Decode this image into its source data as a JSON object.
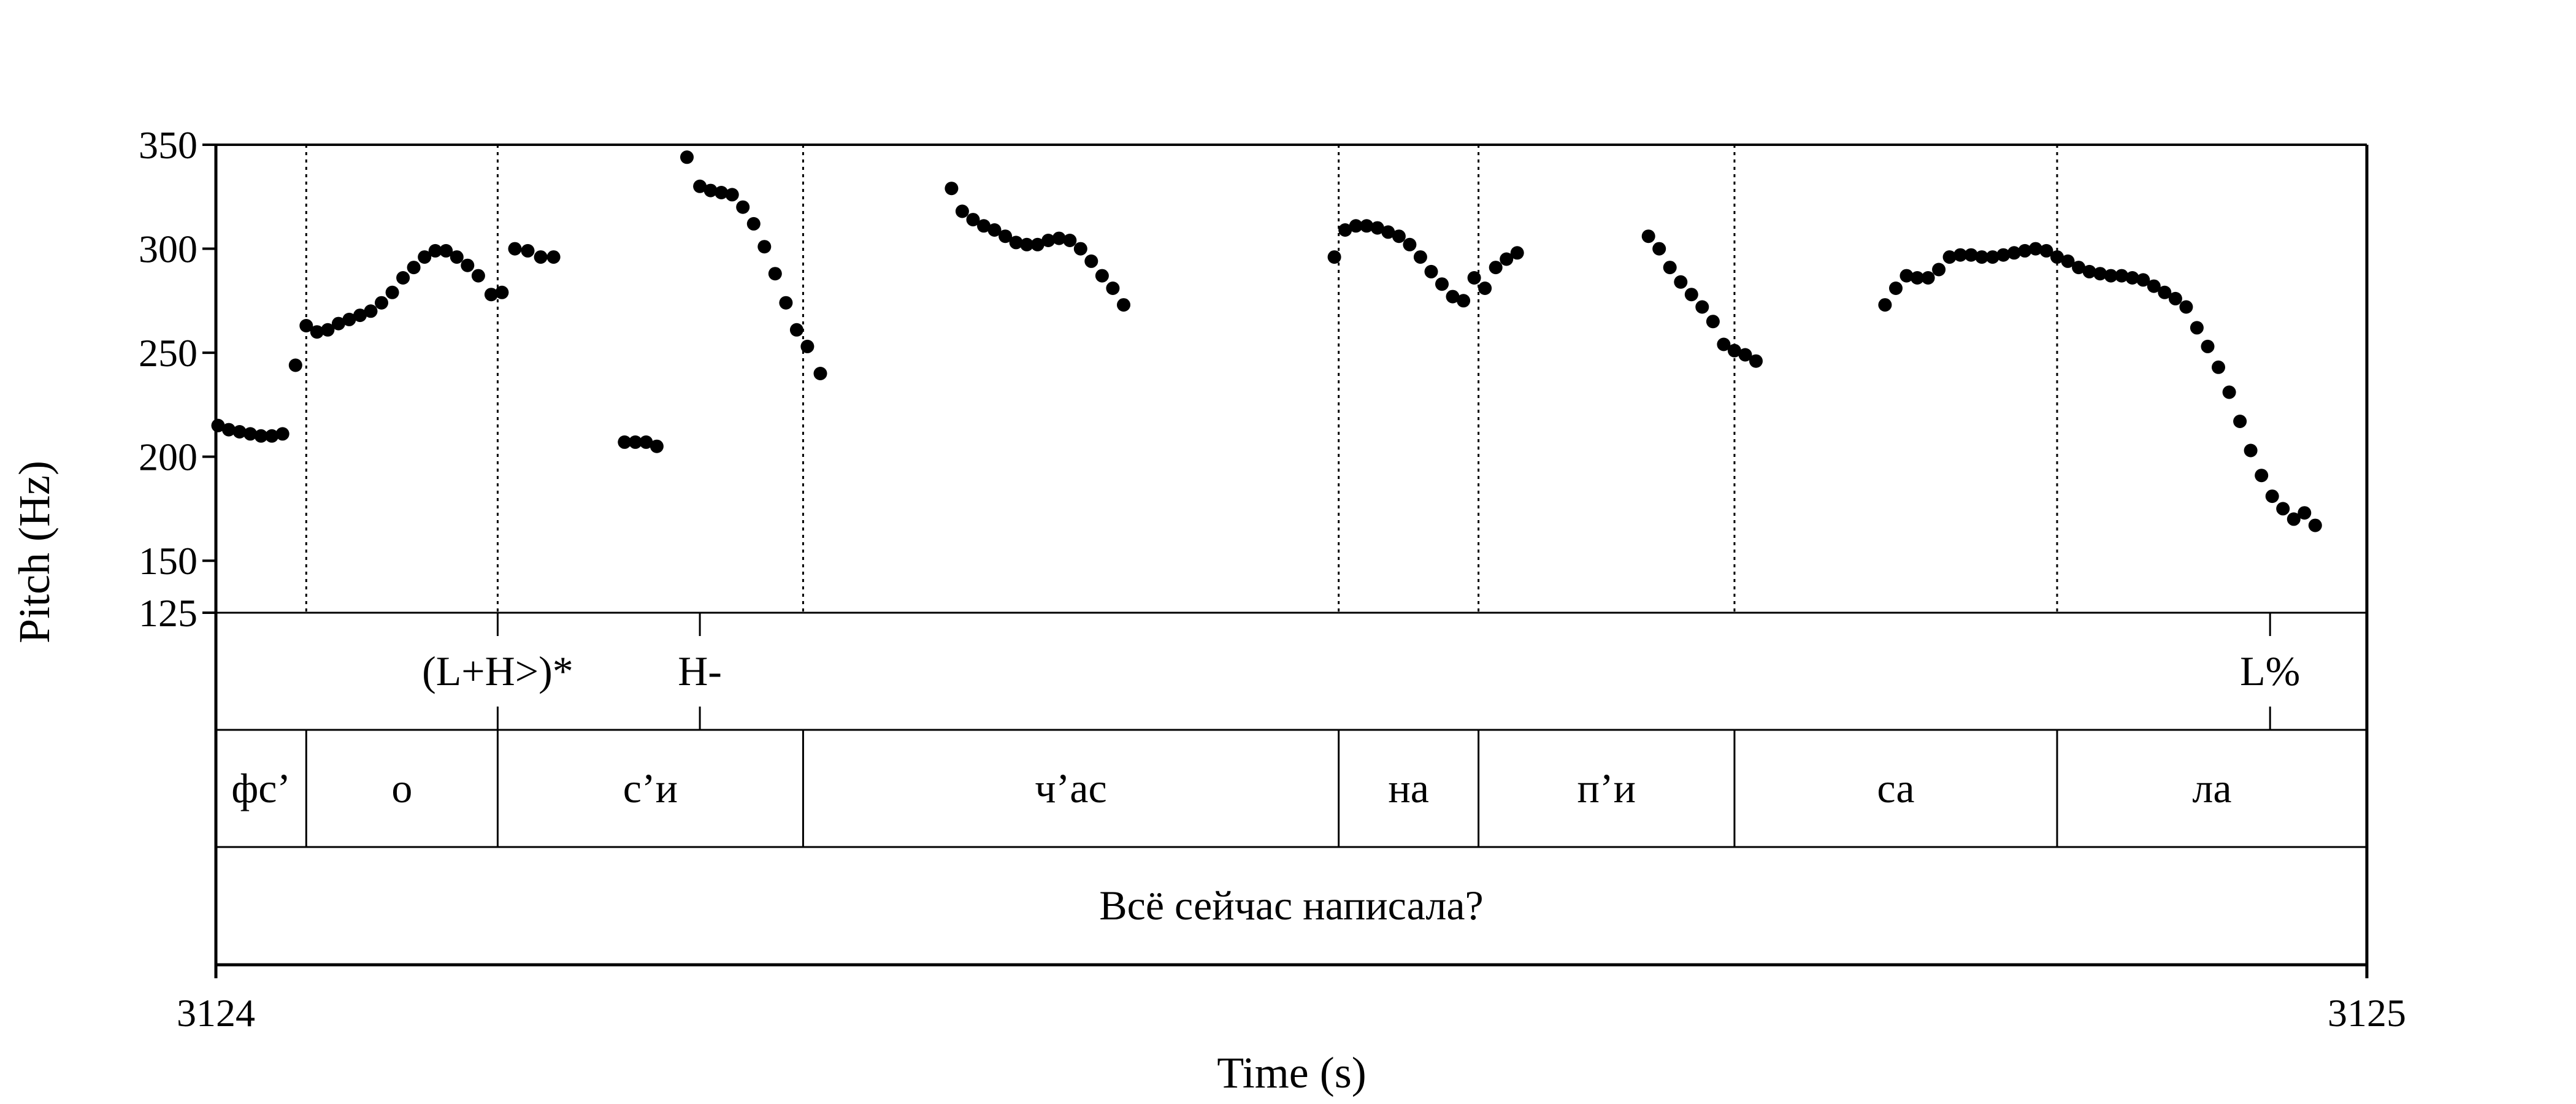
{
  "chart_data": {
    "type": "scatter",
    "xlabel": "Time (s)",
    "ylabel": "Pitch (Hz)",
    "xlim": [
      3124,
      3125
    ],
    "ylim": [
      125,
      350
    ],
    "x_ticks": [
      "3124",
      "3125"
    ],
    "y_ticks": [
      {
        "value": 125,
        "label": "125"
      },
      {
        "value": 150,
        "label": "150"
      },
      {
        "value": 200,
        "label": "200"
      },
      {
        "value": 250,
        "label": "250"
      },
      {
        "value": 300,
        "label": "300"
      },
      {
        "value": 350,
        "label": "350"
      }
    ],
    "grid": false,
    "boundaries": [
      3124.042,
      3124.131,
      3124.273,
      3124.522,
      3124.587,
      3124.706,
      3124.856,
      3125.0
    ],
    "tones": [
      {
        "time": 3124.131,
        "label": "(L+H>)*"
      },
      {
        "time": 3124.225,
        "label": "H-"
      },
      {
        "time": 3124.955,
        "label": "L%"
      }
    ],
    "syllables": [
      {
        "start": 3124.0,
        "end": 3124.042,
        "label": "фс’"
      },
      {
        "start": 3124.042,
        "end": 3124.131,
        "label": "о"
      },
      {
        "start": 3124.131,
        "end": 3124.273,
        "label": "с’и"
      },
      {
        "start": 3124.273,
        "end": 3124.522,
        "label": "ч’ас"
      },
      {
        "start": 3124.522,
        "end": 3124.587,
        "label": "на"
      },
      {
        "start": 3124.587,
        "end": 3124.706,
        "label": "п’и"
      },
      {
        "start": 3124.706,
        "end": 3124.856,
        "label": "са"
      },
      {
        "start": 3124.856,
        "end": 3125.0,
        "label": "ла"
      }
    ],
    "phrase": "Всё сейчас написала?",
    "series": [
      {
        "points": [
          [
            3124.001,
            215
          ],
          [
            3124.006,
            213
          ],
          [
            3124.011,
            212
          ],
          [
            3124.016,
            211
          ],
          [
            3124.021,
            210
          ],
          [
            3124.026,
            210
          ],
          [
            3124.031,
            211
          ],
          [
            3124.037,
            244
          ],
          [
            3124.042,
            263
          ],
          [
            3124.047,
            260
          ],
          [
            3124.052,
            261
          ],
          [
            3124.057,
            264
          ],
          [
            3124.062,
            266
          ],
          [
            3124.067,
            268
          ],
          [
            3124.072,
            270
          ],
          [
            3124.077,
            274
          ],
          [
            3124.082,
            279
          ],
          [
            3124.087,
            286
          ],
          [
            3124.092,
            291
          ],
          [
            3124.097,
            296
          ],
          [
            3124.102,
            299
          ],
          [
            3124.107,
            299
          ],
          [
            3124.112,
            296
          ],
          [
            3124.117,
            292
          ],
          [
            3124.122,
            287
          ],
          [
            3124.128,
            278
          ],
          [
            3124.133,
            279
          ],
          [
            3124.139,
            300
          ],
          [
            3124.145,
            299
          ],
          [
            3124.151,
            296
          ],
          [
            3124.157,
            296
          ],
          [
            3124.19,
            207
          ],
          [
            3124.195,
            207
          ],
          [
            3124.2,
            207
          ],
          [
            3124.205,
            205
          ],
          [
            3124.219,
            344
          ],
          [
            3124.225,
            330
          ],
          [
            3124.23,
            328
          ],
          [
            3124.235,
            327
          ],
          [
            3124.24,
            326
          ],
          [
            3124.245,
            320
          ],
          [
            3124.25,
            312
          ],
          [
            3124.255,
            301
          ],
          [
            3124.26,
            288
          ],
          [
            3124.265,
            274
          ],
          [
            3124.27,
            261
          ],
          [
            3124.275,
            253
          ],
          [
            3124.281,
            240
          ],
          [
            3124.342,
            329
          ],
          [
            3124.347,
            318
          ],
          [
            3124.352,
            314
          ],
          [
            3124.357,
            311
          ],
          [
            3124.362,
            309
          ],
          [
            3124.367,
            306
          ],
          [
            3124.372,
            303
          ],
          [
            3124.377,
            302
          ],
          [
            3124.382,
            302
          ],
          [
            3124.387,
            304
          ],
          [
            3124.392,
            305
          ],
          [
            3124.397,
            304
          ],
          [
            3124.402,
            300
          ],
          [
            3124.407,
            294
          ],
          [
            3124.412,
            287
          ],
          [
            3124.417,
            281
          ],
          [
            3124.422,
            273
          ],
          [
            3124.52,
            296
          ],
          [
            3124.525,
            309
          ],
          [
            3124.53,
            311
          ],
          [
            3124.535,
            311
          ],
          [
            3124.54,
            310
          ],
          [
            3124.545,
            308
          ],
          [
            3124.55,
            306
          ],
          [
            3124.555,
            302
          ],
          [
            3124.56,
            296
          ],
          [
            3124.565,
            289
          ],
          [
            3124.57,
            283
          ],
          [
            3124.575,
            277
          ],
          [
            3124.58,
            275
          ],
          [
            3124.585,
            286
          ],
          [
            3124.59,
            281
          ],
          [
            3124.595,
            291
          ],
          [
            3124.6,
            295
          ],
          [
            3124.605,
            298
          ],
          [
            3124.666,
            306
          ],
          [
            3124.671,
            300
          ],
          [
            3124.676,
            291
          ],
          [
            3124.681,
            284
          ],
          [
            3124.686,
            278
          ],
          [
            3124.691,
            272
          ],
          [
            3124.696,
            265
          ],
          [
            3124.701,
            254
          ],
          [
            3124.706,
            251
          ],
          [
            3124.711,
            249
          ],
          [
            3124.716,
            246
          ],
          [
            3124.776,
            273
          ],
          [
            3124.781,
            281
          ],
          [
            3124.786,
            287
          ],
          [
            3124.791,
            286
          ],
          [
            3124.796,
            286
          ],
          [
            3124.801,
            290
          ],
          [
            3124.806,
            296
          ],
          [
            3124.811,
            297
          ],
          [
            3124.816,
            297
          ],
          [
            3124.821,
            296
          ],
          [
            3124.826,
            296
          ],
          [
            3124.831,
            297
          ],
          [
            3124.836,
            298
          ],
          [
            3124.841,
            299
          ],
          [
            3124.846,
            300
          ],
          [
            3124.851,
            299
          ],
          [
            3124.856,
            296
          ],
          [
            3124.861,
            294
          ],
          [
            3124.866,
            291
          ],
          [
            3124.871,
            289
          ],
          [
            3124.876,
            288
          ],
          [
            3124.881,
            287
          ],
          [
            3124.886,
            287
          ],
          [
            3124.891,
            286
          ],
          [
            3124.896,
            285
          ],
          [
            3124.901,
            282
          ],
          [
            3124.906,
            279
          ],
          [
            3124.911,
            276
          ],
          [
            3124.916,
            272
          ],
          [
            3124.921,
            262
          ],
          [
            3124.926,
            253
          ],
          [
            3124.931,
            243
          ],
          [
            3124.936,
            231
          ],
          [
            3124.941,
            217
          ],
          [
            3124.946,
            203
          ],
          [
            3124.951,
            191
          ],
          [
            3124.956,
            181
          ],
          [
            3124.961,
            175
          ],
          [
            3124.966,
            170
          ],
          [
            3124.971,
            173
          ],
          [
            3124.976,
            167
          ]
        ]
      }
    ]
  }
}
